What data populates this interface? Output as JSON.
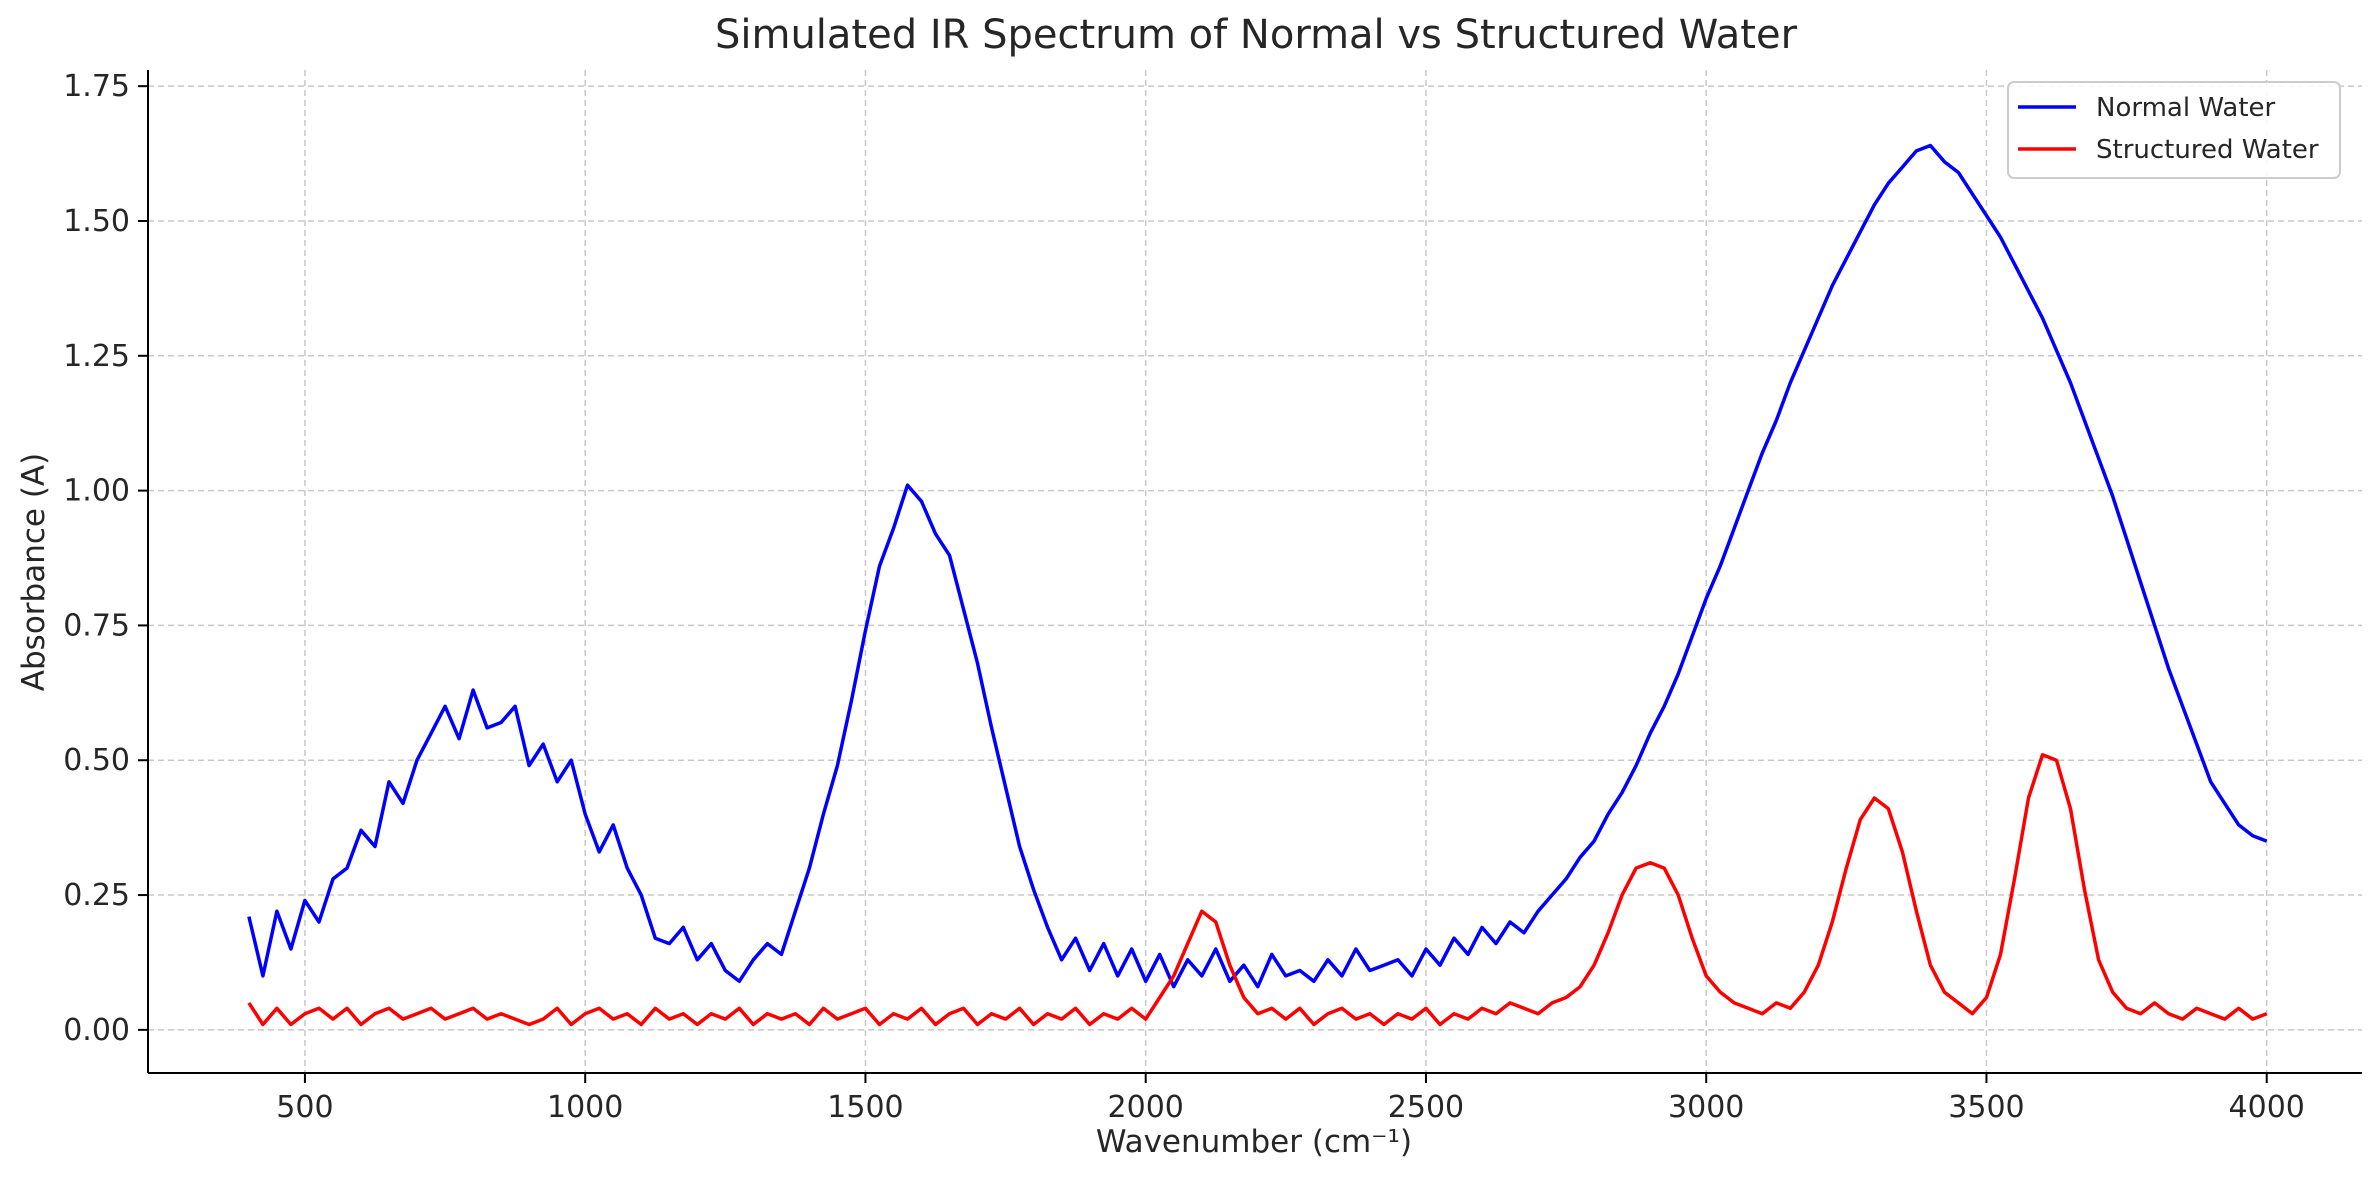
{
  "chart_data": {
    "type": "line",
    "title": "Simulated IR Spectrum of Normal vs Structured Water",
    "xlabel": "Wavenumber (cm⁻¹)",
    "ylabel": "Absorbance (A)",
    "xlim": [
      220,
      4170
    ],
    "ylim": [
      -0.08,
      1.78
    ],
    "x_ticks": [
      500,
      1000,
      1500,
      2000,
      2500,
      3000,
      3500,
      4000
    ],
    "x_tick_labels": [
      "500",
      "1000",
      "1500",
      "2000",
      "2500",
      "3000",
      "3500",
      "4000"
    ],
    "y_ticks": [
      0.0,
      0.25,
      0.5,
      0.75,
      1.0,
      1.25,
      1.5,
      1.75
    ],
    "y_tick_labels": [
      "0.00",
      "0.25",
      "0.50",
      "0.75",
      "1.00",
      "1.25",
      "1.50",
      "1.75"
    ],
    "grid": true,
    "legend_position": "top-right",
    "series": [
      {
        "name": "Normal Water",
        "color": "#0000ff",
        "x": [
          400,
          425,
          450,
          475,
          500,
          525,
          550,
          575,
          600,
          625,
          650,
          675,
          700,
          725,
          750,
          775,
          800,
          825,
          850,
          875,
          900,
          925,
          950,
          975,
          1000,
          1025,
          1050,
          1075,
          1100,
          1125,
          1150,
          1175,
          1200,
          1225,
          1250,
          1275,
          1300,
          1325,
          1350,
          1375,
          1400,
          1425,
          1450,
          1475,
          1500,
          1525,
          1550,
          1575,
          1600,
          1625,
          1650,
          1675,
          1700,
          1725,
          1750,
          1775,
          1800,
          1825,
          1850,
          1875,
          1900,
          1925,
          1950,
          1975,
          2000,
          2025,
          2050,
          2075,
          2100,
          2125,
          2150,
          2175,
          2200,
          2225,
          2250,
          2275,
          2300,
          2325,
          2350,
          2375,
          2400,
          2425,
          2450,
          2475,
          2500,
          2525,
          2550,
          2575,
          2600,
          2625,
          2650,
          2675,
          2700,
          2725,
          2750,
          2775,
          2800,
          2825,
          2850,
          2875,
          2900,
          2925,
          2950,
          2975,
          3000,
          3025,
          3050,
          3075,
          3100,
          3125,
          3150,
          3175,
          3200,
          3225,
          3250,
          3275,
          3300,
          3325,
          3350,
          3375,
          3400,
          3425,
          3450,
          3475,
          3500,
          3525,
          3550,
          3575,
          3600,
          3625,
          3650,
          3675,
          3700,
          3725,
          3750,
          3775,
          3800,
          3825,
          3850,
          3875,
          3900,
          3925,
          3950,
          3975,
          4000
        ],
        "values": [
          0.21,
          0.1,
          0.22,
          0.15,
          0.24,
          0.2,
          0.28,
          0.3,
          0.37,
          0.34,
          0.46,
          0.42,
          0.5,
          0.55,
          0.6,
          0.54,
          0.63,
          0.56,
          0.57,
          0.6,
          0.49,
          0.53,
          0.46,
          0.5,
          0.4,
          0.33,
          0.38,
          0.3,
          0.25,
          0.17,
          0.16,
          0.19,
          0.13,
          0.16,
          0.11,
          0.09,
          0.13,
          0.16,
          0.14,
          0.22,
          0.3,
          0.4,
          0.49,
          0.61,
          0.74,
          0.86,
          0.93,
          1.01,
          0.98,
          0.92,
          0.88,
          0.78,
          0.68,
          0.56,
          0.45,
          0.34,
          0.26,
          0.19,
          0.13,
          0.17,
          0.11,
          0.16,
          0.1,
          0.15,
          0.09,
          0.14,
          0.08,
          0.13,
          0.1,
          0.15,
          0.09,
          0.12,
          0.08,
          0.14,
          0.1,
          0.11,
          0.09,
          0.13,
          0.1,
          0.15,
          0.11,
          0.12,
          0.13,
          0.1,
          0.15,
          0.12,
          0.17,
          0.14,
          0.19,
          0.16,
          0.2,
          0.18,
          0.22,
          0.25,
          0.28,
          0.32,
          0.35,
          0.4,
          0.44,
          0.49,
          0.55,
          0.6,
          0.66,
          0.73,
          0.8,
          0.86,
          0.93,
          1.0,
          1.07,
          1.13,
          1.2,
          1.26,
          1.32,
          1.38,
          1.43,
          1.48,
          1.53,
          1.57,
          1.6,
          1.63,
          1.64,
          1.61,
          1.59,
          1.55,
          1.51,
          1.47,
          1.42,
          1.37,
          1.32,
          1.26,
          1.2,
          1.13,
          1.06,
          0.99,
          0.91,
          0.83,
          0.75,
          0.67,
          0.6,
          0.53,
          0.46,
          0.42,
          0.38,
          0.36,
          0.35
        ]
      },
      {
        "name": "Structured Water",
        "color": "#ff0000",
        "x": [
          400,
          425,
          450,
          475,
          500,
          525,
          550,
          575,
          600,
          625,
          650,
          675,
          700,
          725,
          750,
          775,
          800,
          825,
          850,
          875,
          900,
          925,
          950,
          975,
          1000,
          1025,
          1050,
          1075,
          1100,
          1125,
          1150,
          1175,
          1200,
          1225,
          1250,
          1275,
          1300,
          1325,
          1350,
          1375,
          1400,
          1425,
          1450,
          1475,
          1500,
          1525,
          1550,
          1575,
          1600,
          1625,
          1650,
          1675,
          1700,
          1725,
          1750,
          1775,
          1800,
          1825,
          1850,
          1875,
          1900,
          1925,
          1950,
          1975,
          2000,
          2025,
          2050,
          2075,
          2100,
          2125,
          2150,
          2175,
          2200,
          2225,
          2250,
          2275,
          2300,
          2325,
          2350,
          2375,
          2400,
          2425,
          2450,
          2475,
          2500,
          2525,
          2550,
          2575,
          2600,
          2625,
          2650,
          2675,
          2700,
          2725,
          2750,
          2775,
          2800,
          2825,
          2850,
          2875,
          2900,
          2925,
          2950,
          2975,
          3000,
          3025,
          3050,
          3075,
          3100,
          3125,
          3150,
          3175,
          3200,
          3225,
          3250,
          3275,
          3300,
          3325,
          3350,
          3375,
          3400,
          3425,
          3450,
          3475,
          3500,
          3525,
          3550,
          3575,
          3600,
          3625,
          3650,
          3675,
          3700,
          3725,
          3750,
          3775,
          3800,
          3825,
          3850,
          3875,
          3900,
          3925,
          3950,
          3975,
          4000
        ],
        "values": [
          0.05,
          0.01,
          0.04,
          0.01,
          0.03,
          0.04,
          0.02,
          0.04,
          0.01,
          0.03,
          0.04,
          0.02,
          0.03,
          0.04,
          0.02,
          0.03,
          0.04,
          0.02,
          0.03,
          0.02,
          0.01,
          0.02,
          0.04,
          0.01,
          0.03,
          0.04,
          0.02,
          0.03,
          0.01,
          0.04,
          0.02,
          0.03,
          0.01,
          0.03,
          0.02,
          0.04,
          0.01,
          0.03,
          0.02,
          0.03,
          0.01,
          0.04,
          0.02,
          0.03,
          0.04,
          0.01,
          0.03,
          0.02,
          0.04,
          0.01,
          0.03,
          0.04,
          0.01,
          0.03,
          0.02,
          0.04,
          0.01,
          0.03,
          0.02,
          0.04,
          0.01,
          0.03,
          0.02,
          0.04,
          0.02,
          0.06,
          0.1,
          0.16,
          0.22,
          0.2,
          0.12,
          0.06,
          0.03,
          0.04,
          0.02,
          0.04,
          0.01,
          0.03,
          0.04,
          0.02,
          0.03,
          0.01,
          0.03,
          0.02,
          0.04,
          0.01,
          0.03,
          0.02,
          0.04,
          0.03,
          0.05,
          0.04,
          0.03,
          0.05,
          0.06,
          0.08,
          0.12,
          0.18,
          0.25,
          0.3,
          0.31,
          0.3,
          0.25,
          0.17,
          0.1,
          0.07,
          0.05,
          0.04,
          0.03,
          0.05,
          0.04,
          0.07,
          0.12,
          0.2,
          0.3,
          0.39,
          0.43,
          0.41,
          0.33,
          0.22,
          0.12,
          0.07,
          0.05,
          0.03,
          0.06,
          0.14,
          0.28,
          0.43,
          0.51,
          0.5,
          0.41,
          0.26,
          0.13,
          0.07,
          0.04,
          0.03,
          0.05,
          0.03,
          0.02,
          0.04,
          0.03,
          0.02,
          0.04,
          0.02,
          0.03
        ]
      }
    ]
  }
}
